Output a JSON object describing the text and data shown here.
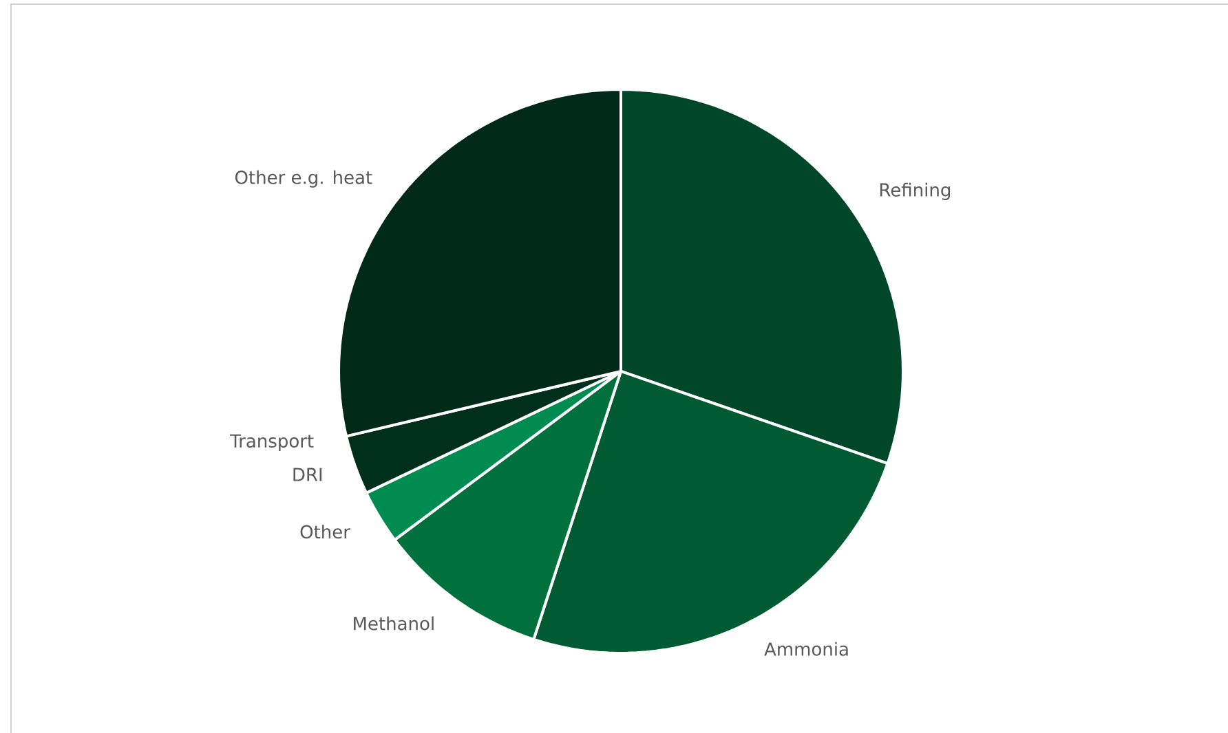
{
  "chart_data": {
    "type": "pie",
    "categories": [
      "Refining",
      "Ammonia",
      "Methanol",
      "Other",
      "DRI",
      "Transport",
      "Other e.g. heat"
    ],
    "values": [
      30.3,
      24.7,
      9.8,
      3.1,
      3.4,
      null,
      28.7
    ],
    "colors": [
      "#00472a",
      "#005a32",
      "#00703d",
      "#008c50",
      "#002f1b",
      "#002f1b",
      "#00291a"
    ]
  }
}
